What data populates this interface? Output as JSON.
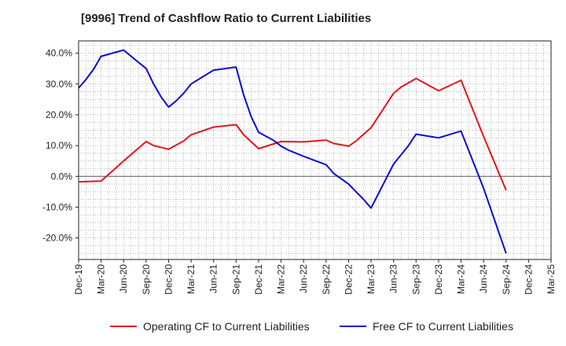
{
  "chart_data": {
    "type": "line",
    "title": "[9996]  Trend of Cashflow Ratio to Current Liabilities",
    "xlabel": "",
    "ylabel": "",
    "x_ticks": [
      "Dec-19",
      "Mar-20",
      "Jun-20",
      "Sep-20",
      "Dec-20",
      "Mar-21",
      "Jun-21",
      "Sep-21",
      "Dec-21",
      "Mar-22",
      "Jun-22",
      "Sep-22",
      "Dec-22",
      "Mar-23",
      "Jun-23",
      "Sep-23",
      "Dec-23",
      "Mar-24",
      "Jun-24",
      "Sep-24",
      "Dec-24",
      "Mar-25"
    ],
    "y_ticks": [
      "40.0%",
      "30.0%",
      "20.0%",
      "10.0%",
      "0.0%",
      "-10.0%",
      "-20.0%"
    ],
    "ylim": [
      -27,
      44
    ],
    "y_unit": "%",
    "grid": true,
    "legend_position": "bottom",
    "series": [
      {
        "name": "Operating CF to Current Liabilities",
        "color": "#e8141b",
        "x": [
          "2019-12",
          "2020-03",
          "2020-06",
          "2020-09",
          "2020-10",
          "2020-12",
          "2021-02",
          "2021-03",
          "2021-06",
          "2021-09",
          "2021-10",
          "2021-12",
          "2022-03",
          "2022-06",
          "2022-09",
          "2022-10",
          "2022-12",
          "2023-01",
          "2023-03",
          "2023-06",
          "2023-07",
          "2023-09",
          "2023-12",
          "2024-03",
          "2024-06",
          "2024-09"
        ],
        "values": [
          -1.8,
          -1.5,
          5.0,
          11.3,
          10.0,
          8.8,
          11.5,
          13.5,
          16.0,
          16.8,
          13.5,
          9.0,
          11.3,
          11.2,
          11.8,
          10.7,
          9.8,
          11.5,
          15.8,
          27.0,
          29.0,
          31.8,
          27.8,
          31.2,
          13.0,
          -4.5
        ]
      },
      {
        "name": "Free CF to Current Liabilities",
        "color": "#0a0ad6",
        "x": [
          "2019-12",
          "2020-01",
          "2020-02",
          "2020-03",
          "2020-06",
          "2020-08",
          "2020-09",
          "2020-10",
          "2020-11",
          "2020-12",
          "2021-01",
          "2021-02",
          "2021-03",
          "2021-06",
          "2021-09",
          "2021-10",
          "2021-11",
          "2021-12",
          "2022-01",
          "2022-02",
          "2022-03",
          "2022-04",
          "2022-06",
          "2022-09",
          "2022-10",
          "2022-12",
          "2023-01",
          "2023-02",
          "2023-03",
          "2023-06",
          "2023-08",
          "2023-09",
          "2023-12",
          "2024-03",
          "2024-06",
          "2024-09"
        ],
        "values": [
          28.7,
          31.5,
          34.8,
          39.0,
          41.0,
          37.0,
          35.0,
          30.0,
          25.8,
          22.5,
          24.5,
          27.0,
          30.0,
          34.5,
          35.5,
          26.5,
          19.5,
          14.3,
          13.0,
          11.7,
          9.8,
          8.5,
          6.5,
          3.8,
          1.0,
          -2.5,
          -5.0,
          -7.5,
          -10.3,
          4.0,
          10.0,
          13.7,
          12.5,
          14.7,
          -3.8,
          -25.0
        ]
      }
    ]
  }
}
